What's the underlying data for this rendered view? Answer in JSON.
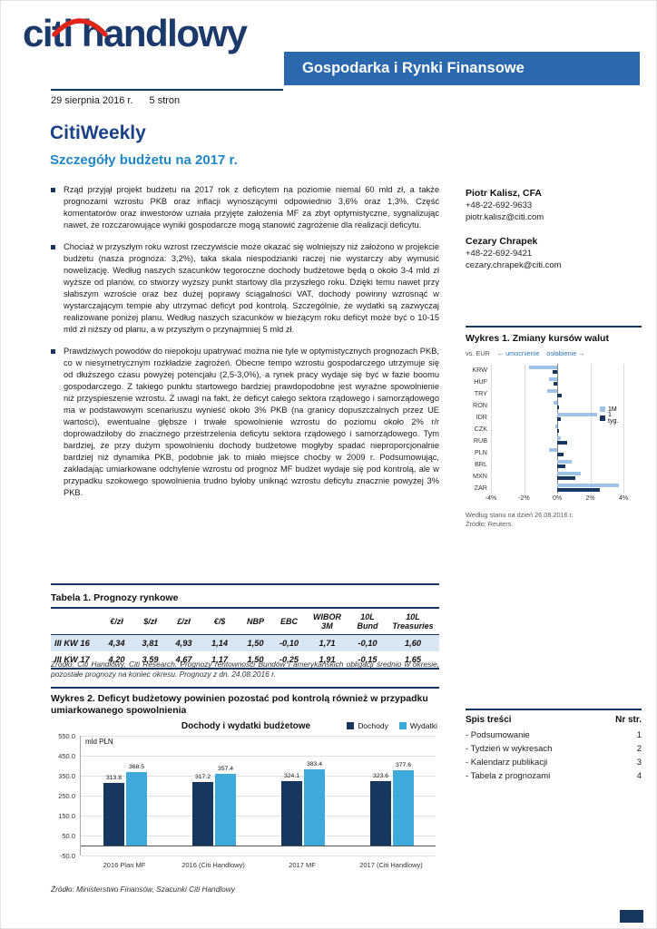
{
  "page": {
    "logo": {
      "brand": "citi",
      "suffix": "handlowy"
    },
    "banner": "Gospodarka i Rynki Finansowe",
    "date": "29 sierpnia 2016 r.",
    "pages": "5 stron",
    "title": "CitiWeekly",
    "subtitle": "Szczegóły budżetu na 2017 r."
  },
  "bullets": [
    "Rząd przyjął projekt budżetu na 2017 rok z deficytem na poziomie niemal 60 mld zł, a także prognozami wzrostu PKB oraz inflacji wynoszącymi odpowiednio 3,6% oraz 1,3%. Część komentatorów oraz inwestorów uznała przyjęte założenia MF za zbyt optymistyczne, sygnalizując nawet, że rozczarowujące wyniki gospodarcze mogą stanowić zagrożenie dla realizacji deficytu.",
    "Chociaż w przyszłym roku wzrost rzeczywiście może okazać się wolniejszy niż założono w projekcie budżetu (nasza prognoza: 3,2%), taka skala niespodzianki raczej nie wystarczy aby wymusić nowelizację. Według naszych szacunków tegoroczne dochody budżetowe będą o około 3-4 mld zł wyższe od planów, co stworzy wyższy punkt startowy dla przyszłego roku. Dzięki temu nawet przy słabszym wzroście oraz bez dużej poprawy ściągalności VAT, dochody powinny wzrosnąć w wystarczającym tempie aby utrzymać deficyt pod kontrolą. Szczególnie, że wydatki są zazwyczaj realizowane poniżej planu. Według naszych szacunków w bieżącym roku deficyt może być o 10-15 mld zł niższy od planu, a w przyszłym o przynajmniej 5 mld zł.",
    "Prawdziwych powodów do niepokoju upatrywać można nie tyle w optymistycznych prognozach PKB, co w niesymetrycznym rozkładzie zagrożeń. Obecne tempo wzrostu gospodarczego utrzymuje się od dłuższego czasu powyżej potencjału (2,5-3,0%), a rynek pracy wydaje się być w fazie boomu gospodarczego. Z takiego punktu startowego bardziej prawdopodobne jest wyraźne spowolnienie niż przyspieszenie wzrostu. Z uwagi na fakt, że deficyt całego sektora rządowego i samorządowego ma w podstawowym scenariuszu wynieść około 3% PKB (na granicy dopuszczalnych przez UE wartości), ewentualne głębsze i trwałe spowolnienie wzrostu do poziomu około 2% r/r doprowadziłoby do znacznego przestrzelenia deficytu sektora rządowego i samorządowego. Tym bardziej, że przy dużym spowolnieniu dochody budżetowe mogłyby spadać nieproporcjonalnie bardziej niż dynamika PKB, podobnie jak to miało miejsce choćby w 2009 r. Podsumowując, zakładając umiarkowane odchylenie wzrostu od prognoz MF budżet wydaje się pod kontrolą, ale w przypadku szokowego spowolnienia trudno byłoby uniknąć wzrostu deficytu znacznie powyżej 3% PKB."
  ],
  "contacts": [
    {
      "name": "Piotr Kalisz, CFA",
      "phone": "+48-22-692-9633",
      "email": "piotr.kalisz@citi.com"
    },
    {
      "name": "Cezary Chrapek",
      "phone": "+48-22-692-9421",
      "email": "cezary.chrapek@citi.com"
    }
  ],
  "table1": {
    "caption": "Tabela 1. Prognozy rynkowe",
    "headers": [
      "",
      "€/zł",
      "$/zł",
      "£/zł",
      "€/$",
      "NBP",
      "EBC",
      "WIBOR 3M",
      "10L Bund",
      "10L Treasuries"
    ],
    "rows": [
      [
        "III KW 16",
        "4,34",
        "3,81",
        "4,93",
        "1,14",
        "1,50",
        "-0,10",
        "1,71",
        "-0,10",
        "1,60"
      ],
      [
        "III KW 17",
        "4,20",
        "3,59",
        "4,67",
        "1,17",
        "1,50",
        "-0,25",
        "1,91",
        "-0,15",
        "1,65"
      ]
    ],
    "source": "Źródło: Citi Handlowy, Citi Research. Prognozy rentowności Bundów i amerykańskich obligacji średnio w okresie, pozostałe prognozy na koniec okresu. Prognozy z dn. 24.08.2016 r."
  },
  "sections": {
    "wykres2_heading": "Wykres 2. Deficyt budżetowy powinien pozostać pod kontrolą również w przypadku umiarkowanego spowolnienia",
    "wykres2_source": "Źródło: Ministerstwo Finansów, Szacunki Citi Handlowy"
  },
  "toc": {
    "title": "Spis treści",
    "col_header": "Nr str.",
    "items": [
      {
        "label": "- Podsumowanie",
        "page": "1"
      },
      {
        "label": "- Tydzień w wykresach",
        "page": "2"
      },
      {
        "label": "- Kalendarz publikacji",
        "page": "3"
      },
      {
        "label": "- Tabela z prognozami",
        "page": "4"
      }
    ]
  },
  "chart_data": [
    {
      "type": "bar",
      "orientation": "horizontal",
      "title": "Wykres 1. Zmiany kursów walut",
      "subtitle": "vs. EUR",
      "annotation_left": "umocnienie",
      "annotation_right": "osłabienie",
      "categories": [
        "KRW",
        "HUF",
        "TRY",
        "RON",
        "IDR",
        "CZK",
        "RUB",
        "PLN",
        "BRL",
        "MXN",
        "ZAR"
      ],
      "series": [
        {
          "name": "1M",
          "color": "#9dc3e6",
          "values": [
            -1.7,
            -0.5,
            -0.6,
            -0.2,
            2.4,
            -0.1,
            0.2,
            -0.5,
            0.9,
            1.4,
            3.7
          ]
        },
        {
          "name": "1 tyg.",
          "color": "#17375e",
          "values": [
            -0.3,
            -0.2,
            0.3,
            0.1,
            0.2,
            0.1,
            0.6,
            0.4,
            0.5,
            1.1,
            2.6
          ]
        }
      ],
      "xlim": [
        -4,
        4
      ],
      "xticks": [
        -4,
        -2,
        0,
        2,
        4
      ],
      "xtick_labels": [
        "-4%",
        "-2%",
        "0%",
        "2%",
        "4%"
      ],
      "grid": true,
      "legend_position": "right",
      "footnote": "Według stanu na dzień 26.08.2016 r.",
      "source": "Źródło: Reuters."
    },
    {
      "type": "bar",
      "title": "Dochody i wydatki budżetowe",
      "ylabel": "mld PLN",
      "categories": [
        "2016 Plan MF",
        "2016 (Citi Handlowy)",
        "2017 MF",
        "2017 (Citi Handlowy)"
      ],
      "series": [
        {
          "name": "Dochody",
          "color": "#17375e",
          "values": [
            313.8,
            317.2,
            324.1,
            323.6
          ]
        },
        {
          "name": "Wydatki",
          "color": "#3fa9dc",
          "values": [
            368.5,
            357.4,
            383.4,
            377.6
          ]
        }
      ],
      "ylim": [
        -50,
        550
      ],
      "yticks": [
        550,
        450,
        350,
        250,
        150,
        50,
        -50
      ],
      "ytick_labels": [
        "550.0",
        "450.0",
        "350.0",
        "250.0",
        "150.0",
        "50.0",
        "-50.0"
      ],
      "grid": true,
      "legend_position": "top-right",
      "data_labels": true
    }
  ],
  "colors": {
    "navy": "#17375e",
    "banner_blue": "#2a69ae",
    "citi_red": "#e1251b",
    "title_blue": "#1b4286",
    "subtitle_blue": "#1f87c5",
    "light_blue": "#9dc3e6",
    "cyan_blue": "#3fa9dc",
    "row_shade": "#d9e6f4"
  }
}
